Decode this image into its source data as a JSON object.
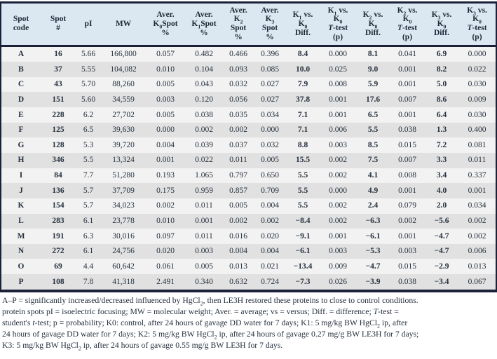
{
  "colors": {
    "border": "#1b2138",
    "header_bg": "#dbe7f1",
    "header_text": "#1e2837",
    "row_odd_bg": "#f2f2f2",
    "row_even_bg": "#e1e1e1",
    "text": "#26313e"
  },
  "table": {
    "columns": [
      {
        "id": "spot-code",
        "label": "Spot\ncode"
      },
      {
        "id": "spot-number",
        "label": "Spot\n#"
      },
      {
        "id": "pi",
        "label": "pI"
      },
      {
        "id": "mw",
        "label": "MW"
      },
      {
        "id": "aver-k0-spot-pct",
        "label": "Aver.\nK<sub>0</sub>Spot\n%"
      },
      {
        "id": "aver-k1-spot-pct",
        "label": "Aver.\nK<sub>1</sub>Spot\n%"
      },
      {
        "id": "aver-k2-spot-pct",
        "label": "Aver.\nK<sub>2</sub>\nSpot\n%"
      },
      {
        "id": "aver-k3-spot-pct",
        "label": "Aver.\nK<sub>3</sub>\nSpot\n%"
      },
      {
        "id": "k1-vs-k0-diff",
        "label": "K<sub>1</sub> vs.\nK<sub>0</sub>\nDiff."
      },
      {
        "id": "k1-vs-k0-ttest",
        "label": "K<sub>1</sub> vs.\nK<sub>0</sub>\n<i>T</i>-test\n(p)"
      },
      {
        "id": "k2-vs-k0-diff",
        "label": "K<sub>2</sub> vs.\nK<sub>0</sub>\nDiff."
      },
      {
        "id": "k2-vs-k0-ttest",
        "label": "K<sub>2</sub> vs.\nK<sub>0</sub>\n<i>T</i>-test\n(p)"
      },
      {
        "id": "k3-vs-k0-diff",
        "label": "K<sub>3</sub> vs.\nK<sub>0</sub>\nDiff."
      },
      {
        "id": "k3-vs-k0-ttest",
        "label": "K<sub>3</sub> vs.\nK<sub>0</sub>\n<i>T</i>-test\n(p)"
      }
    ],
    "rows": [
      [
        "A",
        "16",
        "5.66",
        "166,800",
        "0.057",
        "0.482",
        "0.466",
        "0.396",
        "8.4",
        "0.000",
        "8.1",
        "0.041",
        "6.9",
        "0.000"
      ],
      [
        "B",
        "37",
        "5.55",
        "104,082",
        "0.010",
        "0.104",
        "0.093",
        "0.085",
        "10.0",
        "0.025",
        "9.0",
        "0.001",
        "8.2",
        "0.022"
      ],
      [
        "C",
        "43",
        "5.70",
        "88,260",
        "0.005",
        "0.043",
        "0.032",
        "0.027",
        "7.9",
        "0.008",
        "5.9",
        "0.001",
        "5.0",
        "0.030"
      ],
      [
        "D",
        "151",
        "5.60",
        "34,559",
        "0.003",
        "0.120",
        "0.056",
        "0.027",
        "37.8",
        "0.001",
        "17.6",
        "0.007",
        "8.6",
        "0.009"
      ],
      [
        "E",
        "228",
        "6.2",
        "27,702",
        "0.005",
        "0.038",
        "0.035",
        "0.034",
        "7.1",
        "0.001",
        "6.5",
        "0.001",
        "6.4",
        "0.030"
      ],
      [
        "F",
        "125",
        "6.5",
        "39,630",
        "0.000",
        "0.002",
        "0.002",
        "0.000",
        "7.1",
        "0.006",
        "5.5",
        "0.038",
        "1.3",
        "0.400"
      ],
      [
        "G",
        "128",
        "5.3",
        "39,720",
        "0.004",
        "0.039",
        "0.037",
        "0.032",
        "8.8",
        "0.003",
        "8.5",
        "0.015",
        "7.2",
        "0.081"
      ],
      [
        "H",
        "346",
        "5.5",
        "13,324",
        "0.001",
        "0.022",
        "0.011",
        "0.005",
        "15.5",
        "0.002",
        "7.5",
        "0.007",
        "3.3",
        "0.011"
      ],
      [
        "I",
        "84",
        "7.7",
        "51,280",
        "0.193",
        "1.065",
        "0.797",
        "0.650",
        "5.5",
        "0.002",
        "4.1",
        "0.008",
        "3.4",
        "0.337"
      ],
      [
        "J",
        "136",
        "5.7",
        "37,709",
        "0.175",
        "0.959",
        "0.857",
        "0.709",
        "5.5",
        "0.000",
        "4.9",
        "0.001",
        "4.0",
        "0.001"
      ],
      [
        "K",
        "154",
        "5.7",
        "34,023",
        "0.002",
        "0.011",
        "0.005",
        "0.004",
        "5.5",
        "0.002",
        "2.4",
        "0.079",
        "2.0",
        "0.034"
      ],
      [
        "L",
        "283",
        "6.1",
        "23,778",
        "0.010",
        "0.001",
        "0.002",
        "0.002",
        "−8.4",
        "0.002",
        "−6.3",
        "0.002",
        "−5.6",
        "0.002"
      ],
      [
        "M",
        "191",
        "6.3",
        "30,016",
        "0.097",
        "0.011",
        "0.016",
        "0.020",
        "−9.1",
        "0.001",
        "−6.1",
        "0.001",
        "−4.7",
        "0.002"
      ],
      [
        "N",
        "272",
        "6.1",
        "24,756",
        "0.020",
        "0.003",
        "0.004",
        "0.004",
        "−6.1",
        "0.003",
        "−5.3",
        "0.003",
        "−4.7",
        "0.006"
      ],
      [
        "O",
        "69",
        "4.4",
        "60,642",
        "0.061",
        "0.005",
        "0.013",
        "0.021",
        "−13.4",
        "0.009",
        "−4.7",
        "0.015",
        "−2.9",
        "0.013"
      ],
      [
        "P",
        "108",
        "7.8",
        "41,318",
        "2.491",
        "0.340",
        "0.632",
        "0.724",
        "−7.3",
        "0.026",
        "−3.9",
        "0.038",
        "−3.4",
        "0.067"
      ]
    ]
  },
  "footnote": {
    "text": "A–P = significantly increased/decreased influenced by HgCl<sub>2</sub>, then LE3H restored these proteins to close to control conditions.\nprotein spots pI = isoelectric focusing; MW = molecular weight; Aver. = average; vs = versus; Diff. = difference; <i>T</i>-test =\nstudent's <i>t</i>-test; p = probability; K0: control, after 24 hours of gavage DD water for 7 days; K1: 5 mg/kg BW HgCl<sub>2</sub> ip, after\n24 hours of gavage DD water for 7 days; K2: 5 mg/kg BW HgCl<sub>2</sub> ip, after 24 hours of gavage 0.27 mg/g BW LE3H for 7 days;\nK3: 5 mg/kg BW HgCl<sub>2</sub> ip, after 24 hours of gavage 0.55 mg/g BW LE3H for 7 days."
  }
}
